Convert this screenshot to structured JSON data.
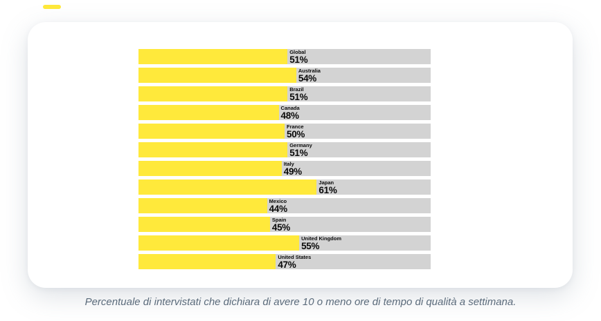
{
  "colors": {
    "bar_fill": "#ffe93b",
    "bar_track": "#d3d3d3",
    "label_text": "#0a0a0a",
    "caption_text": "#5b6b7b",
    "card_background": "#ffffff",
    "page_background": "#ffffff",
    "accent_dash": "#ffe93b"
  },
  "caption": {
    "text": "Percentuale di intervistati che dichiara di avere 10 o meno ore di tempo di qualità a settimana."
  },
  "chart_data": {
    "type": "bar",
    "orientation": "horizontal",
    "title": "",
    "xlabel": "",
    "ylabel": "",
    "xlim": [
      0,
      100
    ],
    "grid": false,
    "legend": false,
    "value_suffix": "%",
    "categories": [
      "Global",
      "Australia",
      "Brazil",
      "Canada",
      "France",
      "Germany",
      "Italy",
      "Japan",
      "Mexico",
      "Spain",
      "United Kingdom",
      "United States"
    ],
    "values": [
      51,
      54,
      51,
      48,
      50,
      51,
      49,
      61,
      44,
      45,
      55,
      47
    ],
    "labels": [
      "51%",
      "54%",
      "51%",
      "48%",
      "50%",
      "51%",
      "49%",
      "61%",
      "44%",
      "45%",
      "55%",
      "47%"
    ],
    "annotation": "Percentuale di intervistati che dichiara di avere 10 o meno ore di tempo di qualità a settimana.",
    "layout_hints": {
      "bar_color": "#ffe93b",
      "track_color": "#d3d3d3",
      "label_position": "right-of-bar-end",
      "label_lines": [
        "category",
        "value"
      ]
    }
  }
}
